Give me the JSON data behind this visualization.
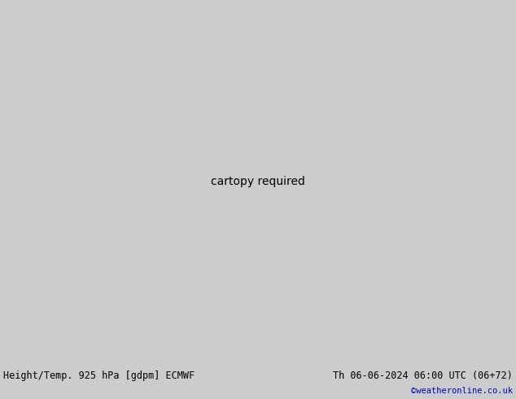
{
  "title_left": "Height/Temp. 925 hPa [gdpm] ECMWF",
  "title_right": "Th 06-06-2024 06:00 UTC (06+72)",
  "credit": "©weatheronline.co.uk",
  "fig_width": 6.34,
  "fig_height": 4.9,
  "dpi": 100,
  "map_extent": [
    -30,
    50,
    25,
    75
  ],
  "ocean_color": "#d8d8d8",
  "land_color": "#c8c8c8",
  "green_color": "#b8dfa0",
  "footer_bg": "#cccccc",
  "black_contour_color": "#000000",
  "orange_contour_color": "#e07800",
  "green_contour_color": "#80b800",
  "cyan_contour_color": "#00bbbb",
  "red_contour_color": "#cc2200",
  "magenta_contour_color": "#cc0088"
}
